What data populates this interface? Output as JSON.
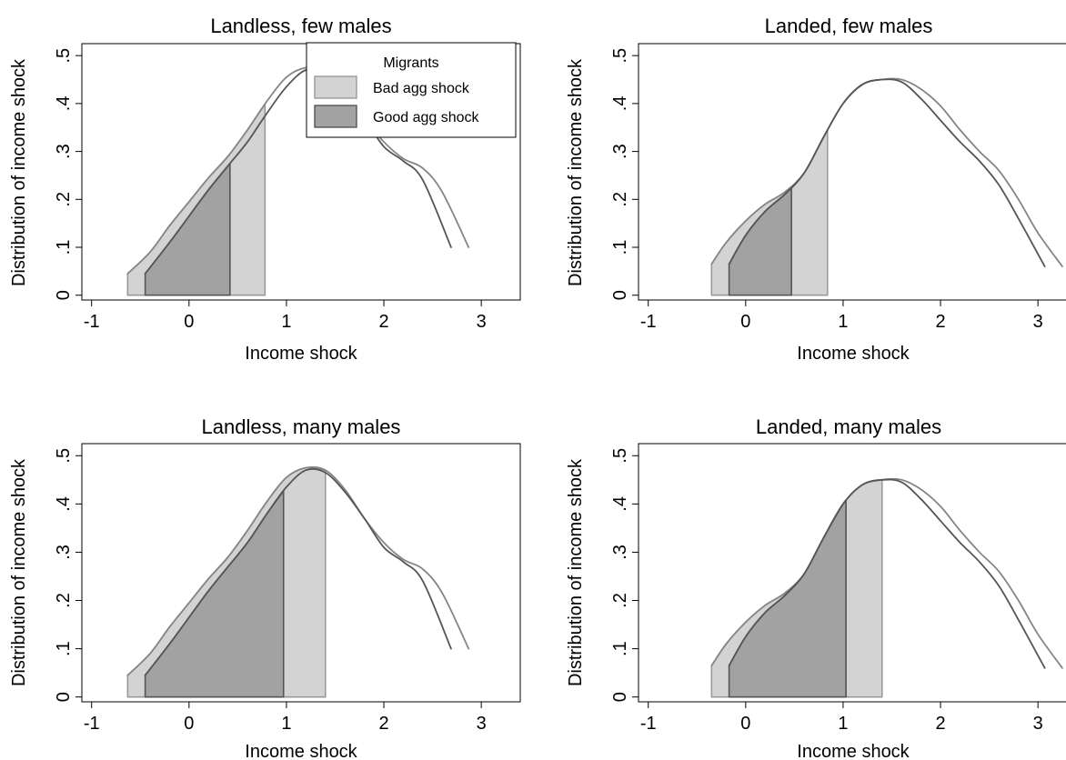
{
  "chart_data": [
    {
      "type": "area",
      "title": "Landless, few males",
      "xlabel": "Income shock",
      "ylabel": "Distribution of income shock",
      "xticks": [
        "-1",
        "0",
        "1",
        "2",
        "3"
      ],
      "yticks": [
        "0",
        ".1",
        ".2",
        ".3",
        ".4",
        ".5"
      ],
      "xlim": [
        -1.1,
        3.4
      ],
      "ylim": [
        -0.01,
        0.525
      ],
      "series": [
        {
          "name": "Bad agg shock",
          "role": "curve",
          "x": [
            -0.63,
            -0.4,
            -0.2,
            0.0,
            0.2,
            0.4,
            0.6,
            0.8,
            1.0,
            1.2,
            1.4,
            1.6,
            1.8,
            2.0,
            2.2,
            2.4,
            2.6,
            2.87
          ],
          "y": [
            0.045,
            0.09,
            0.145,
            0.195,
            0.245,
            0.29,
            0.345,
            0.405,
            0.455,
            0.475,
            0.47,
            0.43,
            0.37,
            0.32,
            0.285,
            0.265,
            0.215,
            0.1
          ]
        },
        {
          "name": "Good agg shock",
          "role": "curve",
          "x": [
            -0.45,
            -0.2,
            0.0,
            0.2,
            0.4,
            0.6,
            0.8,
            1.0,
            1.2,
            1.4,
            1.6,
            1.8,
            2.0,
            2.2,
            2.4,
            2.69
          ],
          "y": [
            0.045,
            0.11,
            0.165,
            0.22,
            0.27,
            0.32,
            0.38,
            0.435,
            0.47,
            0.465,
            0.425,
            0.37,
            0.31,
            0.28,
            0.24,
            0.1
          ]
        }
      ],
      "shaded": [
        {
          "name": "Bad agg shock",
          "from": -0.63,
          "to": 0.78
        },
        {
          "name": "Good agg shock",
          "from": -0.45,
          "to": 0.42
        }
      ],
      "legend": {
        "title": "Migrants",
        "entries": [
          "Bad agg shock",
          "Good agg shock"
        ],
        "placement": "top-right"
      },
      "colors": {
        "bad_fill": "#d3d3d3",
        "good_fill": "#a2a2a2",
        "bad_line": "#858585",
        "good_line": "#555555"
      }
    },
    {
      "type": "area",
      "title": "Landed, few males",
      "xlabel": "Income shock",
      "ylabel": "Distribution of income shock",
      "xticks": [
        "-1",
        "0",
        "1",
        "2",
        "3"
      ],
      "yticks": [
        "0",
        ".1",
        ".2",
        ".3",
        ".4",
        ".5"
      ],
      "xlim": [
        -1.1,
        3.4
      ],
      "ylim": [
        -0.01,
        0.525
      ],
      "series": [
        {
          "name": "Bad agg shock",
          "role": "curve",
          "x": [
            -0.35,
            -0.2,
            0.0,
            0.2,
            0.4,
            0.6,
            0.8,
            1.0,
            1.2,
            1.4,
            1.6,
            1.8,
            2.0,
            2.2,
            2.4,
            2.6,
            2.8,
            3.0,
            3.25
          ],
          "y": [
            0.065,
            0.11,
            0.155,
            0.19,
            0.215,
            0.255,
            0.33,
            0.4,
            0.44,
            0.45,
            0.45,
            0.43,
            0.395,
            0.345,
            0.3,
            0.26,
            0.2,
            0.13,
            0.06
          ]
        },
        {
          "name": "Good agg shock",
          "role": "curve",
          "x": [
            -0.17,
            0.0,
            0.2,
            0.4,
            0.6,
            0.8,
            1.0,
            1.2,
            1.4,
            1.6,
            1.8,
            2.0,
            2.2,
            2.4,
            2.6,
            2.8,
            3.07
          ],
          "y": [
            0.065,
            0.125,
            0.175,
            0.21,
            0.255,
            0.33,
            0.4,
            0.44,
            0.45,
            0.445,
            0.41,
            0.365,
            0.32,
            0.28,
            0.23,
            0.16,
            0.06
          ]
        }
      ],
      "shaded": [
        {
          "name": "Bad agg shock",
          "from": -0.35,
          "to": 0.84
        },
        {
          "name": "Good agg shock",
          "from": -0.17,
          "to": 0.47
        }
      ],
      "colors": {
        "bad_fill": "#d3d3d3",
        "good_fill": "#a2a2a2",
        "bad_line": "#858585",
        "good_line": "#555555"
      }
    },
    {
      "type": "area",
      "title": "Landless, many males",
      "xlabel": "Income shock",
      "ylabel": "Distribution of income shock",
      "xticks": [
        "-1",
        "0",
        "1",
        "2",
        "3"
      ],
      "yticks": [
        "0",
        ".1",
        ".2",
        ".3",
        ".4",
        ".5"
      ],
      "xlim": [
        -1.1,
        3.4
      ],
      "ylim": [
        -0.01,
        0.525
      ],
      "series": [
        {
          "name": "Bad agg shock",
          "role": "curve",
          "x": [
            -0.63,
            -0.4,
            -0.2,
            0.0,
            0.2,
            0.4,
            0.6,
            0.8,
            1.0,
            1.2,
            1.4,
            1.6,
            1.8,
            2.0,
            2.2,
            2.4,
            2.6,
            2.87
          ],
          "y": [
            0.045,
            0.09,
            0.145,
            0.195,
            0.245,
            0.29,
            0.345,
            0.405,
            0.455,
            0.475,
            0.47,
            0.43,
            0.37,
            0.32,
            0.285,
            0.265,
            0.215,
            0.1
          ]
        },
        {
          "name": "Good agg shock",
          "role": "curve",
          "x": [
            -0.45,
            -0.2,
            0.0,
            0.2,
            0.4,
            0.6,
            0.8,
            1.0,
            1.2,
            1.4,
            1.6,
            1.8,
            2.0,
            2.2,
            2.4,
            2.69
          ],
          "y": [
            0.045,
            0.11,
            0.165,
            0.22,
            0.27,
            0.32,
            0.38,
            0.435,
            0.47,
            0.465,
            0.425,
            0.37,
            0.31,
            0.28,
            0.24,
            0.1
          ]
        }
      ],
      "shaded": [
        {
          "name": "Bad agg shock",
          "from": -0.63,
          "to": 1.4
        },
        {
          "name": "Good agg shock",
          "from": -0.45,
          "to": 0.97
        }
      ],
      "colors": {
        "bad_fill": "#d3d3d3",
        "good_fill": "#a2a2a2",
        "bad_line": "#858585",
        "good_line": "#555555"
      }
    },
    {
      "type": "area",
      "title": "Landed, many males",
      "xlabel": "Income shock",
      "ylabel": "Distribution of income shock",
      "xticks": [
        "-1",
        "0",
        "1",
        "2",
        "3"
      ],
      "yticks": [
        "0",
        ".1",
        ".2",
        ".3",
        ".4",
        ".5"
      ],
      "xlim": [
        -1.1,
        3.4
      ],
      "ylim": [
        -0.01,
        0.525
      ],
      "series": [
        {
          "name": "Bad agg shock",
          "role": "curve",
          "x": [
            -0.35,
            -0.2,
            0.0,
            0.2,
            0.4,
            0.6,
            0.8,
            1.0,
            1.2,
            1.4,
            1.6,
            1.8,
            2.0,
            2.2,
            2.4,
            2.6,
            2.8,
            3.0,
            3.25
          ],
          "y": [
            0.065,
            0.11,
            0.155,
            0.19,
            0.215,
            0.255,
            0.33,
            0.4,
            0.44,
            0.45,
            0.45,
            0.43,
            0.395,
            0.345,
            0.3,
            0.26,
            0.2,
            0.13,
            0.06
          ]
        },
        {
          "name": "Good agg shock",
          "role": "curve",
          "x": [
            -0.17,
            0.0,
            0.2,
            0.4,
            0.6,
            0.8,
            1.0,
            1.2,
            1.4,
            1.6,
            1.8,
            2.0,
            2.2,
            2.4,
            2.6,
            2.8,
            3.07
          ],
          "y": [
            0.065,
            0.125,
            0.175,
            0.21,
            0.255,
            0.33,
            0.4,
            0.44,
            0.45,
            0.445,
            0.41,
            0.365,
            0.32,
            0.28,
            0.23,
            0.16,
            0.06
          ]
        }
      ],
      "shaded": [
        {
          "name": "Bad agg shock",
          "from": -0.35,
          "to": 1.4
        },
        {
          "name": "Good agg shock",
          "from": -0.17,
          "to": 1.03
        }
      ],
      "colors": {
        "bad_fill": "#d3d3d3",
        "good_fill": "#a2a2a2",
        "bad_line": "#858585",
        "good_line": "#555555"
      }
    }
  ]
}
